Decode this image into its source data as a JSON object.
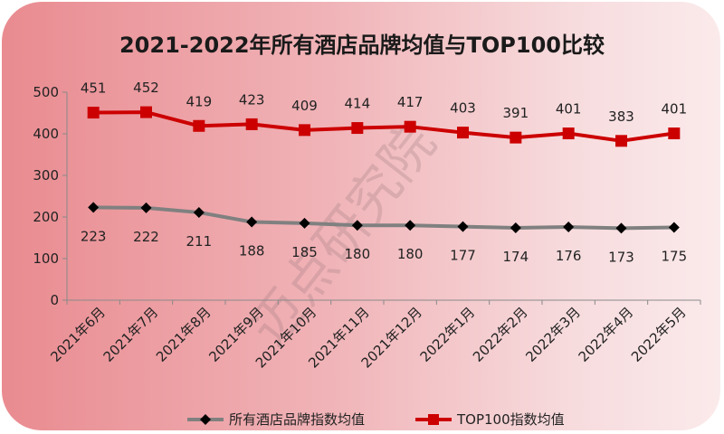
{
  "chart_data": {
    "type": "line",
    "title": "2021-2022年所有酒店品牌均值与TOP100比较",
    "categories": [
      "2021年6月",
      "2021年7月",
      "2021年8月",
      "2021年9月",
      "2021年10月",
      "2021年11月",
      "2021年12月",
      "2022年1月",
      "2022年2月",
      "2022年3月",
      "2022年4月",
      "2022年5月"
    ],
    "ylim": [
      0,
      500
    ],
    "yticks": [
      0,
      100,
      200,
      300,
      400,
      500
    ],
    "legend_position": "bottom",
    "series": [
      {
        "name": "所有酒店品牌指数均值",
        "values": [
          223,
          222,
          211,
          188,
          185,
          180,
          180,
          177,
          174,
          176,
          173,
          175
        ],
        "color": "#808080",
        "marker": "diamond",
        "label_position": "below"
      },
      {
        "name": "TOP100指数均值",
        "values": [
          451,
          452,
          419,
          423,
          409,
          414,
          417,
          403,
          391,
          401,
          383,
          401
        ],
        "color": "#cc0000",
        "marker": "square",
        "label_position": "above"
      }
    ],
    "watermark": "迈点研究院"
  }
}
